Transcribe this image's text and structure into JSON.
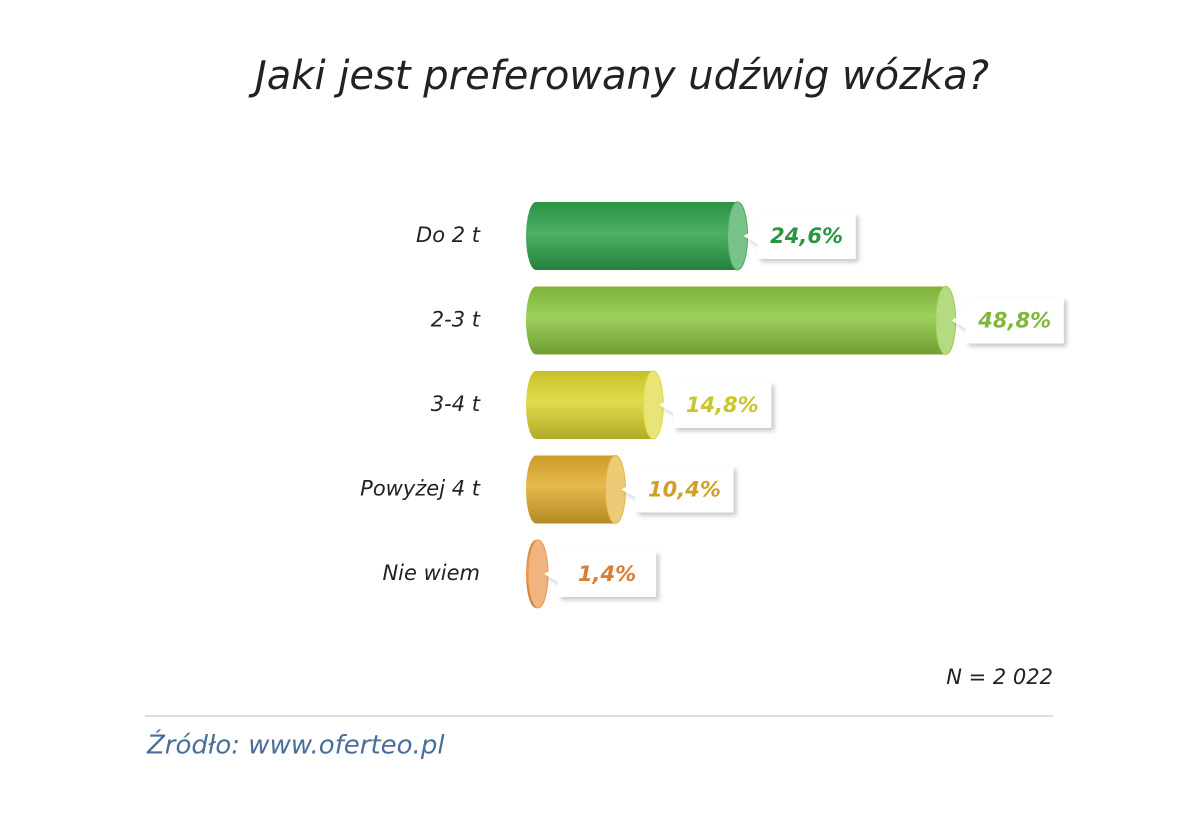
{
  "chart_data": {
    "type": "bar",
    "orientation": "horizontal",
    "title": "Jaki jest preferowany udźwig wózka?",
    "categories": [
      "Do 2 t",
      "2-3 t",
      "3-4 t",
      "Powyżej 4 t",
      "Nie wiem"
    ],
    "values": [
      24.6,
      48.8,
      14.8,
      10.4,
      1.4
    ],
    "value_labels": [
      "24,6%",
      "48,8%",
      "14,8%",
      "10,4%",
      "1,4%"
    ],
    "colors": [
      "#2fa24a",
      "#8cc63f",
      "#dcd62e",
      "#e1ad2c",
      "#e98a3a"
    ],
    "note": "N = 2 022",
    "source": "Źródło: www.oferteo.pl"
  }
}
